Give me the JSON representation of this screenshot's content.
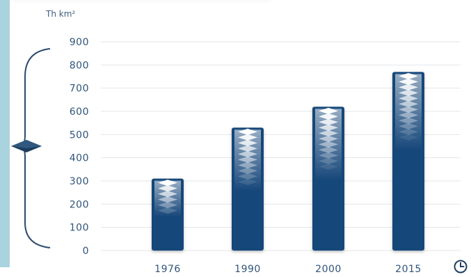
{
  "chart_data": {
    "type": "bar",
    "categories": [
      "1976",
      "1990",
      "2000",
      "2015"
    ],
    "values": [
      310,
      530,
      620,
      770
    ],
    "ylabel": "Th km²",
    "xlabel": "",
    "ylim": [
      0,
      900
    ],
    "yticks": [
      0,
      100,
      200,
      300,
      400,
      500,
      600,
      700,
      800,
      900
    ],
    "grid": true,
    "legend": "none"
  },
  "colors": {
    "bar": "#14477a",
    "bar_highlight": "#ffffff",
    "axis_text": "#2f5478",
    "bracket": "#2b4a6b",
    "grid": "#e3e6ea"
  },
  "icons": {
    "side_marker": "diamond-layer-icon",
    "time_axis": "clock-icon"
  }
}
